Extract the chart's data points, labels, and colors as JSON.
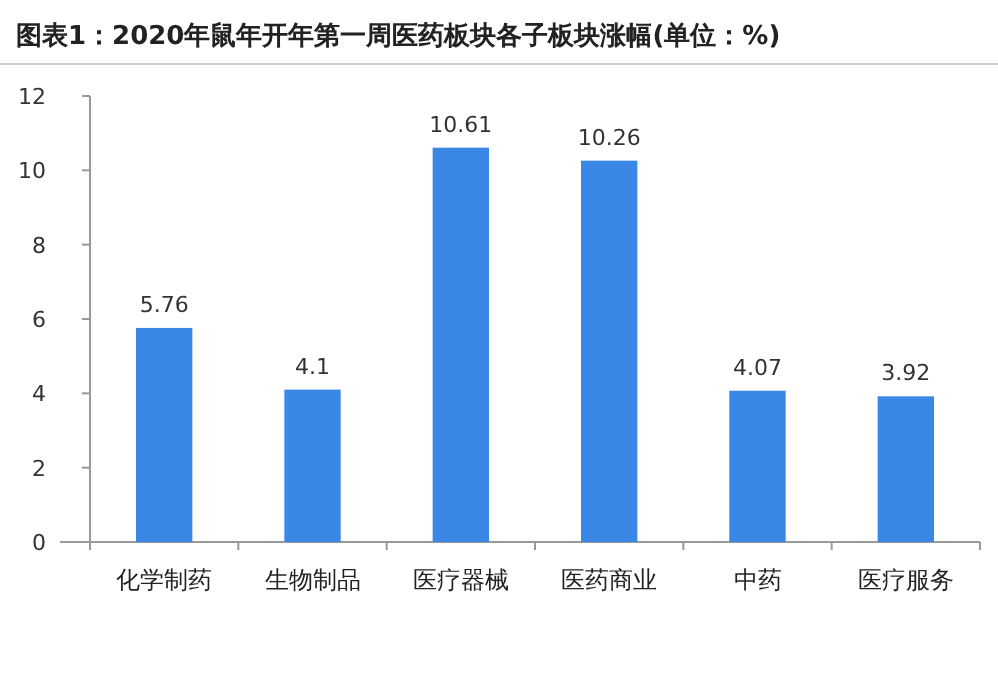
{
  "chart_data": {
    "type": "bar",
    "title": "图表1：2020年鼠年开年第一周医药板块各子板块涨幅(单位：%)",
    "categories": [
      "化学制药",
      "生物制品",
      "医疗器械",
      "医药商业",
      "中药",
      "医疗服务"
    ],
    "values": [
      5.76,
      4.1,
      10.61,
      10.26,
      4.07,
      3.92
    ],
    "color": "#3b87e6",
    "ylim": [
      0,
      12
    ],
    "yticks": [
      0,
      2,
      4,
      6,
      8,
      10,
      12
    ],
    "data_labels": true,
    "grid": false
  }
}
